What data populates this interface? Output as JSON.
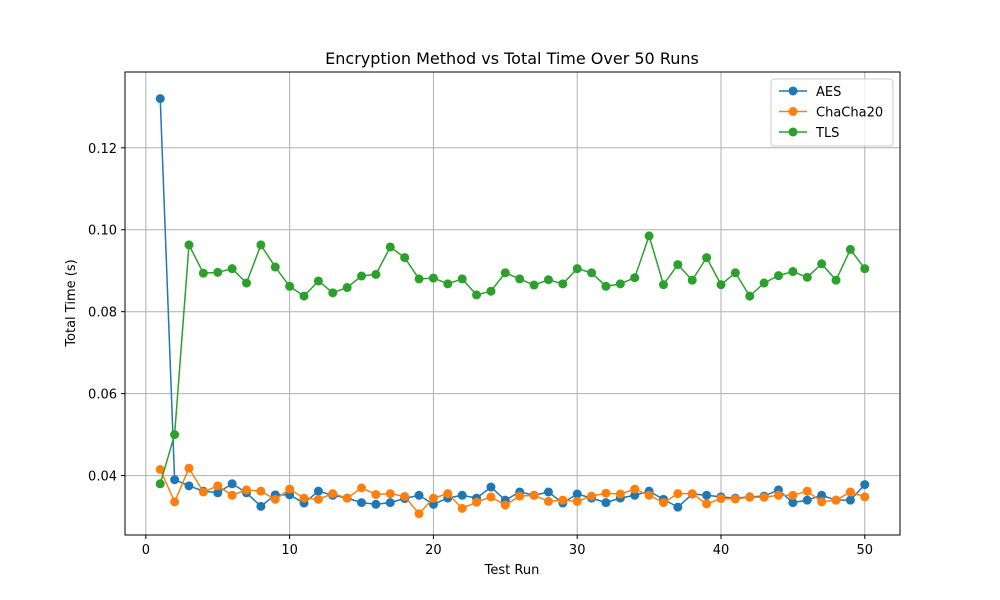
{
  "chart_data": {
    "type": "line",
    "title": "Encryption Method vs Total Time Over 50 Runs",
    "xlabel": "Test Run",
    "ylabel": "Total Time (s)",
    "xlim": [
      -1.45,
      52.45
    ],
    "ylim": [
      0.0255,
      0.1385
    ],
    "xticks": [
      0,
      10,
      20,
      30,
      40,
      50
    ],
    "yticks": [
      0.04,
      0.06,
      0.08,
      0.1,
      0.12
    ],
    "ytick_labels": [
      "0.04",
      "0.06",
      "0.08",
      "0.10",
      "0.12"
    ],
    "grid": true,
    "legend_position": "top-right",
    "x": [
      1,
      2,
      3,
      4,
      5,
      6,
      7,
      8,
      9,
      10,
      11,
      12,
      13,
      14,
      15,
      16,
      17,
      18,
      19,
      20,
      21,
      22,
      23,
      24,
      25,
      26,
      27,
      28,
      29,
      30,
      31,
      32,
      33,
      34,
      35,
      36,
      37,
      38,
      39,
      40,
      41,
      42,
      43,
      44,
      45,
      46,
      47,
      48,
      49,
      50
    ],
    "series": [
      {
        "name": "AES",
        "color": "#1f77b4",
        "values": [
          0.132,
          0.039,
          0.0375,
          0.0362,
          0.0358,
          0.038,
          0.0358,
          0.0325,
          0.0353,
          0.0353,
          0.0333,
          0.0362,
          0.0352,
          0.0345,
          0.0334,
          0.033,
          0.0334,
          0.0344,
          0.0352,
          0.033,
          0.0345,
          0.0352,
          0.0345,
          0.0372,
          0.034,
          0.036,
          0.0352,
          0.036,
          0.0333,
          0.0355,
          0.0345,
          0.0334,
          0.0345,
          0.0352,
          0.0362,
          0.0342,
          0.0323,
          0.0355,
          0.0352,
          0.0348,
          0.0345,
          0.0348,
          0.035,
          0.0365,
          0.0334,
          0.034,
          0.0352,
          0.034,
          0.034,
          0.0378
        ]
      },
      {
        "name": "ChaCha20",
        "color": "#ff7f0e",
        "values": [
          0.0415,
          0.0336,
          0.0418,
          0.036,
          0.0375,
          0.0352,
          0.0365,
          0.0362,
          0.0342,
          0.0367,
          0.0345,
          0.0342,
          0.0356,
          0.0345,
          0.037,
          0.0354,
          0.0356,
          0.0349,
          0.0307,
          0.0345,
          0.0356,
          0.032,
          0.0335,
          0.0348,
          0.0328,
          0.035,
          0.0352,
          0.0337,
          0.034,
          0.0337,
          0.035,
          0.0357,
          0.0355,
          0.0367,
          0.0352,
          0.0334,
          0.0356,
          0.0356,
          0.0331,
          0.0344,
          0.0343,
          0.0347,
          0.0347,
          0.0352,
          0.0352,
          0.0362,
          0.0336,
          0.034,
          0.036,
          0.0348
        ]
      },
      {
        "name": "TLS",
        "color": "#2ca02c",
        "values": [
          0.038,
          0.05,
          0.0963,
          0.0894,
          0.0896,
          0.0905,
          0.087,
          0.0963,
          0.0909,
          0.0862,
          0.0838,
          0.0875,
          0.0846,
          0.0859,
          0.0887,
          0.0891,
          0.0958,
          0.0932,
          0.088,
          0.0882,
          0.0868,
          0.088,
          0.0841,
          0.085,
          0.0895,
          0.088,
          0.0865,
          0.0878,
          0.0868,
          0.0905,
          0.0895,
          0.0862,
          0.0868,
          0.0883,
          0.0985,
          0.0866,
          0.0915,
          0.0877,
          0.0932,
          0.0866,
          0.0895,
          0.0838,
          0.087,
          0.0888,
          0.0898,
          0.0884,
          0.0917,
          0.0877,
          0.0952,
          0.0905
        ]
      }
    ]
  }
}
